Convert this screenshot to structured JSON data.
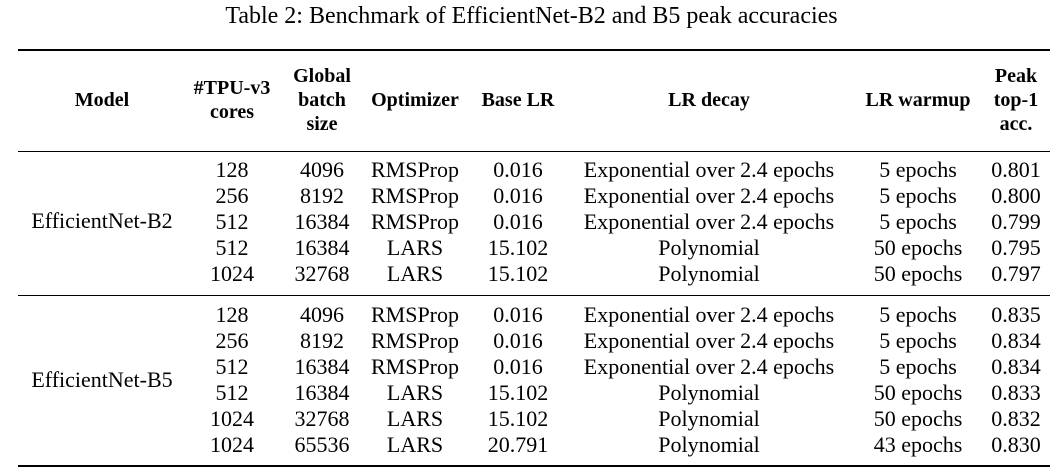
{
  "caption": "Table 2: Benchmark of EfficientNet-B2 and B5 peak accuracies",
  "headers": {
    "model": "Model",
    "cores": [
      "#TPU-v3",
      "cores"
    ],
    "batch": [
      "Global",
      "batch",
      "size"
    ],
    "optimizer": "Optimizer",
    "base_lr": "Base LR",
    "lr_decay": "LR decay",
    "lr_warmup": "LR warmup",
    "acc": [
      "Peak",
      "top-1",
      "acc."
    ]
  },
  "groups": [
    {
      "model": "EfficientNet-B2",
      "rows": [
        {
          "cores": "128",
          "batch": "4096",
          "optimizer": "RMSProp",
          "base_lr": "0.016",
          "lr_decay": "Exponential over 2.4 epochs",
          "lr_warmup": "5 epochs",
          "acc": "0.801"
        },
        {
          "cores": "256",
          "batch": "8192",
          "optimizer": "RMSProp",
          "base_lr": "0.016",
          "lr_decay": "Exponential over 2.4 epochs",
          "lr_warmup": "5 epochs",
          "acc": "0.800"
        },
        {
          "cores": "512",
          "batch": "16384",
          "optimizer": "RMSProp",
          "base_lr": "0.016",
          "lr_decay": "Exponential over 2.4 epochs",
          "lr_warmup": "5 epochs",
          "acc": "0.799"
        },
        {
          "cores": "512",
          "batch": "16384",
          "optimizer": "LARS",
          "base_lr": "15.102",
          "lr_decay": "Polynomial",
          "lr_warmup": "50 epochs",
          "acc": "0.795"
        },
        {
          "cores": "1024",
          "batch": "32768",
          "optimizer": "LARS",
          "base_lr": "15.102",
          "lr_decay": "Polynomial",
          "lr_warmup": "50 epochs",
          "acc": "0.797"
        }
      ]
    },
    {
      "model": "EfficientNet-B5",
      "rows": [
        {
          "cores": "128",
          "batch": "4096",
          "optimizer": "RMSProp",
          "base_lr": "0.016",
          "lr_decay": "Exponential over 2.4 epochs",
          "lr_warmup": "5 epochs",
          "acc": "0.835"
        },
        {
          "cores": "256",
          "batch": "8192",
          "optimizer": "RMSProp",
          "base_lr": "0.016",
          "lr_decay": "Exponential over 2.4 epochs",
          "lr_warmup": "5 epochs",
          "acc": "0.834"
        },
        {
          "cores": "512",
          "batch": "16384",
          "optimizer": "RMSProp",
          "base_lr": "0.016",
          "lr_decay": "Exponential over 2.4 epochs",
          "lr_warmup": "5 epochs",
          "acc": "0.834"
        },
        {
          "cores": "512",
          "batch": "16384",
          "optimizer": "LARS",
          "base_lr": "15.102",
          "lr_decay": "Polynomial",
          "lr_warmup": "50 epochs",
          "acc": "0.833"
        },
        {
          "cores": "1024",
          "batch": "32768",
          "optimizer": "LARS",
          "base_lr": "15.102",
          "lr_decay": "Polynomial",
          "lr_warmup": "50 epochs",
          "acc": "0.832"
        },
        {
          "cores": "1024",
          "batch": "65536",
          "optimizer": "LARS",
          "base_lr": "20.791",
          "lr_decay": "Polynomial",
          "lr_warmup": "43 epochs",
          "acc": "0.830"
        }
      ]
    }
  ]
}
